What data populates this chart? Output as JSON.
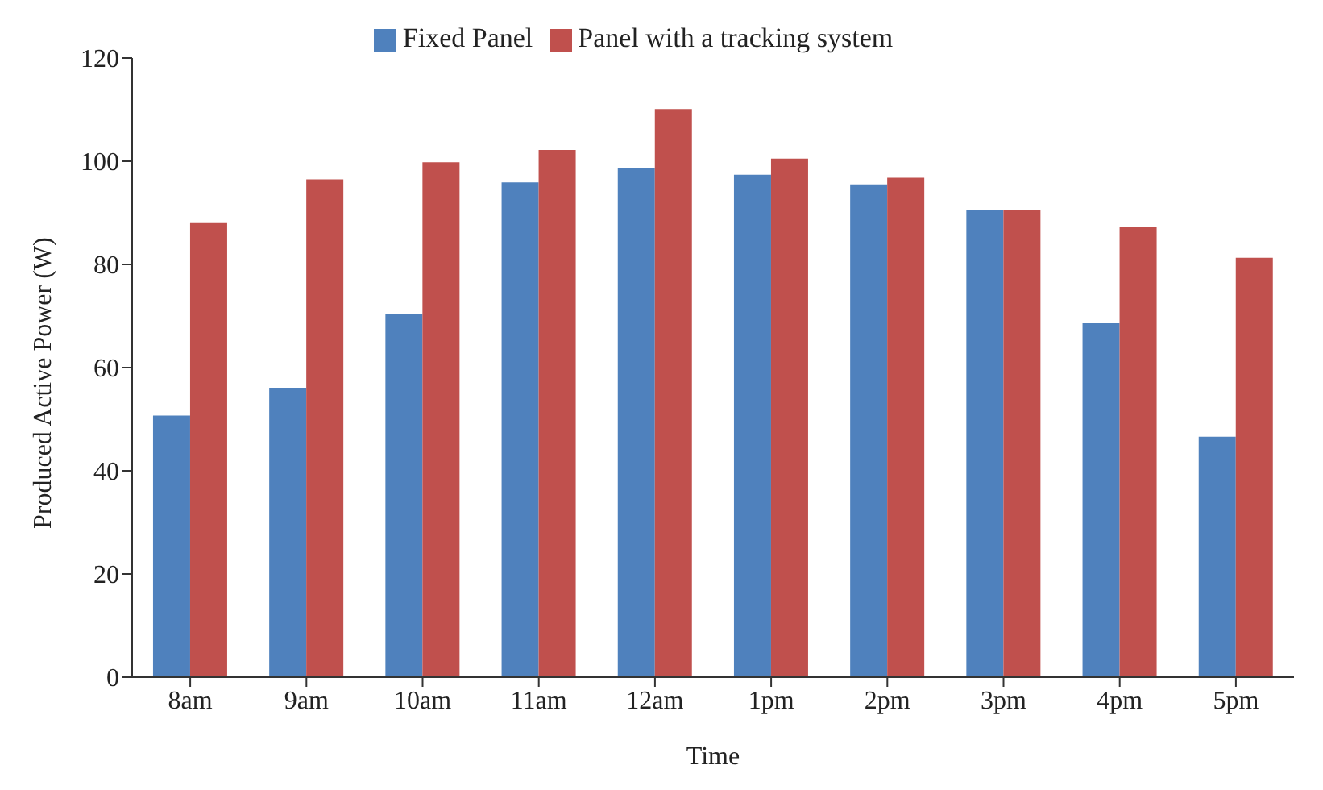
{
  "chart_data": {
    "type": "bar",
    "xlabel": "Time",
    "ylabel": "Produced Active Power (W)",
    "categories": [
      "8am",
      "9am",
      "10am",
      "11am",
      "12am",
      "1pm",
      "2pm",
      "3pm",
      "4pm",
      "5pm"
    ],
    "series": [
      {
        "name": "Fixed Panel",
        "color": "#4f81bd",
        "values": [
          50.7,
          56.1,
          70.3,
          95.9,
          98.7,
          97.4,
          95.5,
          90.6,
          68.6,
          46.6
        ]
      },
      {
        "name": "Panel with a tracking system",
        "color": "#c0504d",
        "values": [
          88,
          96.5,
          99.8,
          102.2,
          110.1,
          100.5,
          96.8,
          90.6,
          87.2,
          81.3
        ]
      }
    ],
    "ylim": [
      0,
      120
    ],
    "yticks": [
      0,
      20,
      40,
      60,
      80,
      100,
      120
    ],
    "grid": false,
    "legend": "top"
  }
}
